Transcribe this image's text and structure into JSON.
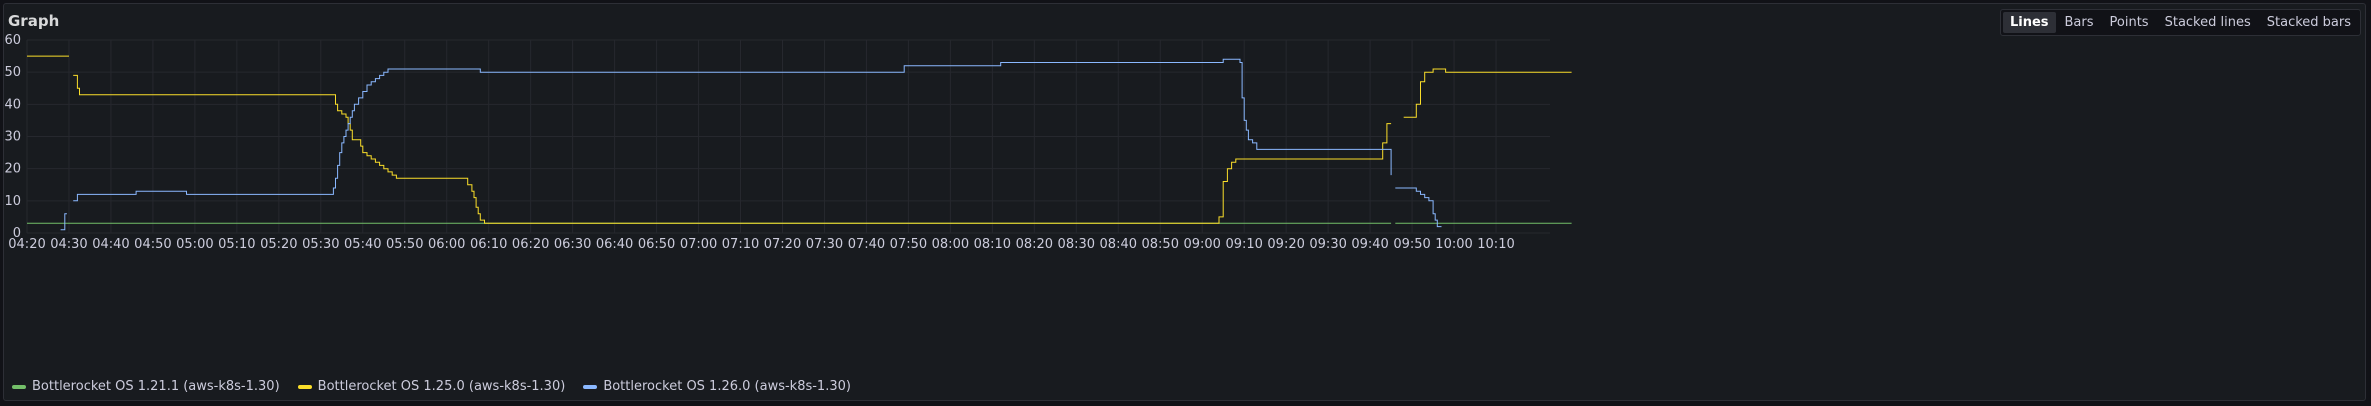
{
  "panel": {
    "title": "Graph",
    "view_options": [
      {
        "label": "Lines",
        "active": true
      },
      {
        "label": "Bars",
        "active": false
      },
      {
        "label": "Points",
        "active": false
      },
      {
        "label": "Stacked lines",
        "active": false
      },
      {
        "label": "Stacked bars",
        "active": false
      }
    ]
  },
  "chart_data": {
    "type": "line",
    "x_unit": "time (HH:MM)",
    "xlim": [
      "04:20",
      "10:20"
    ],
    "ylim": [
      0,
      60
    ],
    "y_ticks": [
      0,
      10,
      20,
      30,
      40,
      50,
      60
    ],
    "x_ticks": [
      "04:20",
      "04:30",
      "04:40",
      "04:50",
      "05:00",
      "05:10",
      "05:20",
      "05:30",
      "05:40",
      "05:50",
      "06:00",
      "06:10",
      "06:20",
      "06:30",
      "06:40",
      "06:50",
      "07:00",
      "07:10",
      "07:20",
      "07:30",
      "07:40",
      "07:50",
      "08:00",
      "08:10",
      "08:20",
      "08:30",
      "08:40",
      "08:50",
      "09:00",
      "09:10",
      "09:20",
      "09:30",
      "09:40",
      "09:50",
      "10:00",
      "10:10"
    ],
    "grid": true,
    "legend_position": "bottom-left",
    "series": [
      {
        "name": "Bottlerocket OS 1.21.1 (aws-k8s-1.30)",
        "color": "#73bf69",
        "segments": [
          [
            [
              "04:20",
              3
            ],
            [
              "09:45",
              3
            ]
          ],
          [
            [
              "09:46",
              3
            ],
            [
              "10:28",
              3
            ]
          ]
        ]
      },
      {
        "name": "Bottlerocket OS 1.25.0 (aws-k8s-1.30)",
        "color": "#fade2a",
        "segments": [
          [
            [
              "04:20",
              55
            ],
            [
              "04:30",
              55
            ]
          ],
          [
            [
              "04:31",
              49
            ],
            [
              "04:31.5",
              49
            ],
            [
              "04:32",
              45
            ],
            [
              "04:32.5",
              43
            ],
            [
              "05:33",
              43
            ],
            [
              "05:33.5",
              40
            ],
            [
              "05:34",
              38
            ],
            [
              "05:35",
              37
            ],
            [
              "05:36",
              36
            ],
            [
              "05:36.5",
              34
            ],
            [
              "05:37",
              32
            ],
            [
              "05:37.5",
              29
            ],
            [
              "05:39",
              29
            ],
            [
              "05:39.5",
              27
            ],
            [
              "05:40",
              25
            ],
            [
              "05:41",
              24
            ],
            [
              "05:42",
              23
            ],
            [
              "05:43",
              22
            ],
            [
              "05:44",
              21
            ],
            [
              "05:45",
              20
            ],
            [
              "05:46",
              19
            ],
            [
              "05:47",
              18
            ],
            [
              "05:48",
              17
            ],
            [
              "06:04",
              17
            ],
            [
              "06:05",
              15
            ],
            [
              "06:06",
              13
            ],
            [
              "06:06.5",
              11
            ],
            [
              "06:07",
              8
            ],
            [
              "06:07.5",
              6
            ],
            [
              "06:08",
              4
            ],
            [
              "06:09",
              3
            ],
            [
              "09:03",
              3
            ],
            [
              "09:04",
              5
            ],
            [
              "09:05",
              16
            ],
            [
              "09:06",
              20
            ],
            [
              "09:07",
              22
            ],
            [
              "09:08",
              23
            ],
            [
              "09:42",
              23
            ],
            [
              "09:43",
              28
            ],
            [
              "09:44",
              34
            ],
            [
              "09:45",
              34
            ]
          ],
          [
            [
              "09:48",
              36
            ],
            [
              "09:50",
              36
            ],
            [
              "09:51",
              40
            ],
            [
              "09:52",
              47
            ],
            [
              "09:53",
              50
            ],
            [
              "09:55",
              51
            ],
            [
              "09:57",
              51
            ],
            [
              "09:58",
              50
            ],
            [
              "10:28",
              50
            ]
          ]
        ]
      },
      {
        "name": "Bottlerocket OS 1.26.0 (aws-k8s-1.30)",
        "color": "#8ab8ff",
        "segments": [
          [
            [
              "04:28",
              1
            ],
            [
              "04:29",
              6
            ],
            [
              "04:29.5",
              6
            ]
          ],
          [
            [
              "04:31",
              10
            ],
            [
              "04:32",
              12
            ],
            [
              "04:45",
              12
            ],
            [
              "04:46",
              13
            ],
            [
              "04:57",
              13
            ],
            [
              "04:58",
              12
            ],
            [
              "05:32",
              12
            ],
            [
              "05:33",
              14
            ],
            [
              "05:33.5",
              17
            ],
            [
              "05:34",
              21
            ],
            [
              "05:34.5",
              25
            ],
            [
              "05:35",
              28
            ],
            [
              "05:35.5",
              30
            ],
            [
              "05:36",
              32
            ],
            [
              "05:36.5",
              34
            ],
            [
              "05:37",
              36
            ],
            [
              "05:37.5",
              38
            ],
            [
              "05:38",
              40
            ],
            [
              "05:39",
              42
            ],
            [
              "05:40",
              44
            ],
            [
              "05:41",
              46
            ],
            [
              "05:42",
              47
            ],
            [
              "05:43",
              48
            ],
            [
              "05:44",
              49
            ],
            [
              "05:45",
              50
            ],
            [
              "05:46",
              51
            ],
            [
              "06:07",
              51
            ],
            [
              "06:08",
              50
            ],
            [
              "07:48",
              50
            ],
            [
              "07:49",
              52
            ],
            [
              "08:11",
              52
            ],
            [
              "08:12",
              53
            ],
            [
              "09:04",
              53
            ],
            [
              "09:05",
              54
            ],
            [
              "09:08",
              54
            ],
            [
              "09:09",
              53
            ],
            [
              "09:09.5",
              42
            ],
            [
              "09:10",
              35
            ],
            [
              "09:10.5",
              32
            ],
            [
              "09:11",
              29
            ],
            [
              "09:12",
              28
            ],
            [
              "09:13",
              26
            ],
            [
              "09:44",
              26
            ],
            [
              "09:45",
              18
            ]
          ],
          [
            [
              "09:46",
              14
            ],
            [
              "09:50",
              14
            ],
            [
              "09:51",
              13
            ],
            [
              "09:52",
              12
            ],
            [
              "09:53",
              11
            ],
            [
              "09:54",
              10
            ],
            [
              "09:55",
              6
            ],
            [
              "09:55.5",
              4
            ],
            [
              "09:56",
              2
            ],
            [
              "09:57",
              2
            ]
          ]
        ]
      }
    ]
  }
}
